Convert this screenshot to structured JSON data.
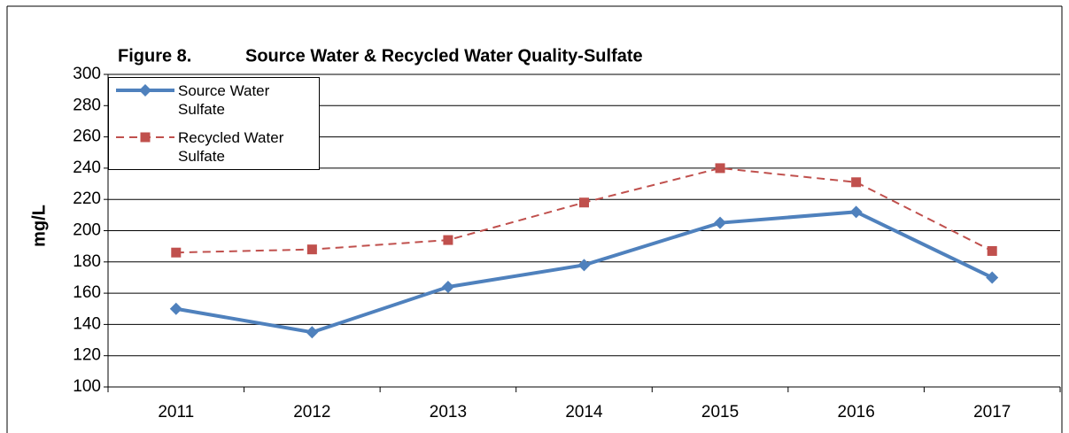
{
  "chart_data": {
    "type": "line",
    "figure_label": "Figure 8.",
    "title": "Source Water & Recycled Water Quality-Sulfate",
    "y_label": "mg/L",
    "categories": [
      "2011",
      "2012",
      "2013",
      "2014",
      "2015",
      "2016",
      "2017"
    ],
    "series": [
      {
        "name": "Source Water Sulfate",
        "color": "#4f81bd",
        "dash": false,
        "marker": "diamond",
        "values": [
          150,
          135,
          164,
          178,
          205,
          212,
          170
        ]
      },
      {
        "name": "Recycled Water Sulfate",
        "color": "#c0504d",
        "dash": true,
        "marker": "square",
        "values": [
          186,
          188,
          194,
          218,
          240,
          231,
          187
        ]
      }
    ],
    "ylim": [
      100,
      300
    ],
    "yticks": [
      100,
      120,
      140,
      160,
      180,
      200,
      220,
      240,
      260,
      280,
      300
    ],
    "grid": true,
    "legend": "upper left"
  }
}
